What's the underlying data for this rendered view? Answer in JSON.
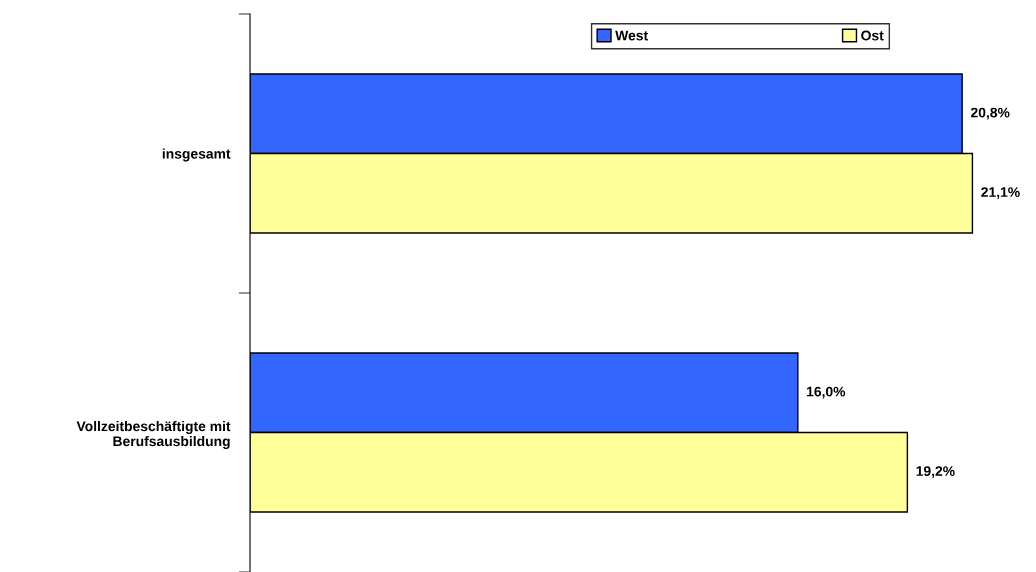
{
  "chart_data": {
    "type": "bar",
    "orientation": "horizontal",
    "categories": [
      "insgesamt",
      "Vollzeitbeschäftigte mit\nBerufsausbildung"
    ],
    "series": [
      {
        "name": "West",
        "color": "#3366ff",
        "values": [
          20.8,
          16.0
        ],
        "value_labels": [
          "20,8%",
          "16,0%"
        ]
      },
      {
        "name": "Ost",
        "color": "#ffff99",
        "values": [
          21.1,
          19.2
        ],
        "value_labels": [
          "21,1%",
          "19,2%"
        ]
      }
    ],
    "legend": "top",
    "grid": false
  }
}
